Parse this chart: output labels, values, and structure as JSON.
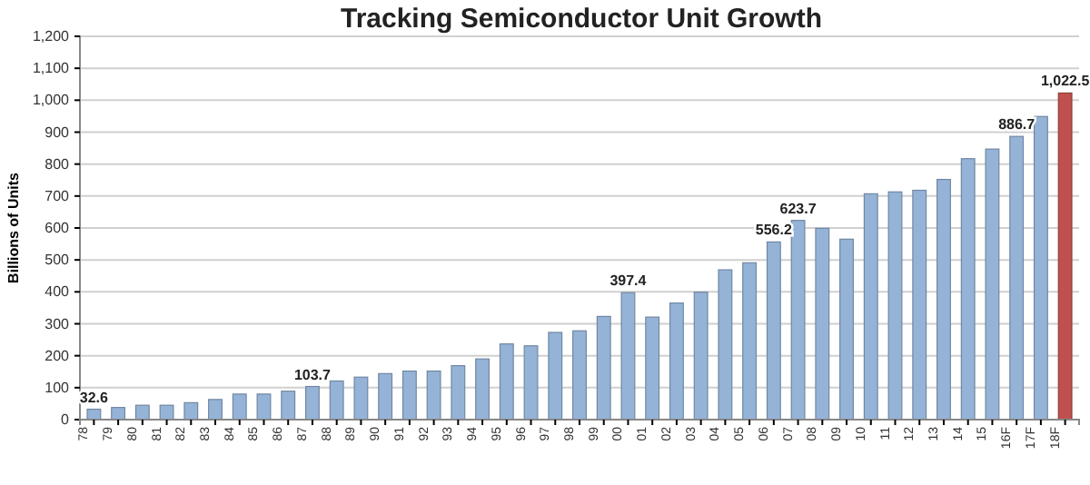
{
  "chart_data": {
    "type": "bar",
    "title": "Tracking Semiconductor Unit Growth",
    "ylabel": "Billions of Units",
    "categories": [
      "78",
      "79",
      "80",
      "81",
      "82",
      "83",
      "84",
      "85",
      "86",
      "87",
      "88",
      "89",
      "90",
      "91",
      "92",
      "93",
      "94",
      "95",
      "96",
      "97",
      "98",
      "99",
      "00",
      "01",
      "02",
      "03",
      "04",
      "05",
      "06",
      "07",
      "08",
      "09",
      "10",
      "11",
      "12",
      "13",
      "14",
      "15",
      "16F",
      "17F",
      "18F"
    ],
    "values": [
      32.6,
      38,
      45,
      45,
      53,
      63,
      80,
      80,
      89,
      103.7,
      121,
      133,
      144,
      152,
      152,
      169,
      190,
      237,
      231,
      273,
      278,
      323,
      397.4,
      321,
      365,
      399,
      469,
      491,
      556.2,
      623.7,
      599,
      565,
      707,
      713,
      718,
      752,
      817,
      847,
      886.7,
      949,
      1022.5
    ],
    "colors": [
      "#95b3d7",
      "#95b3d7",
      "#95b3d7",
      "#95b3d7",
      "#95b3d7",
      "#95b3d7",
      "#95b3d7",
      "#95b3d7",
      "#95b3d7",
      "#95b3d7",
      "#95b3d7",
      "#95b3d7",
      "#95b3d7",
      "#95b3d7",
      "#95b3d7",
      "#95b3d7",
      "#95b3d7",
      "#95b3d7",
      "#95b3d7",
      "#95b3d7",
      "#95b3d7",
      "#95b3d7",
      "#95b3d7",
      "#95b3d7",
      "#95b3d7",
      "#95b3d7",
      "#95b3d7",
      "#95b3d7",
      "#95b3d7",
      "#95b3d7",
      "#95b3d7",
      "#95b3d7",
      "#95b3d7",
      "#95b3d7",
      "#95b3d7",
      "#95b3d7",
      "#95b3d7",
      "#95b3d7",
      "#95b3d7",
      "#95b3d7",
      "#c0504d"
    ],
    "value_labels": [
      "32.6",
      null,
      null,
      null,
      null,
      null,
      null,
      null,
      null,
      "103.7",
      null,
      null,
      null,
      null,
      null,
      null,
      null,
      null,
      null,
      null,
      null,
      null,
      "397.4",
      null,
      null,
      null,
      null,
      null,
      "556.2",
      "623.7",
      null,
      null,
      null,
      null,
      null,
      null,
      null,
      null,
      "886.7",
      null,
      "1,022.5"
    ],
    "ylim": [
      0,
      1200
    ],
    "yticks": [
      0,
      {
        "value": 100,
        "label": "100"
      },
      200,
      300,
      400,
      500,
      600,
      700,
      800,
      900,
      {
        "value": 1000,
        "label": "1,000"
      },
      {
        "value": 1100,
        "label": "1,100"
      },
      {
        "value": 1200,
        "label": "1,200"
      }
    ],
    "grid": "y"
  }
}
